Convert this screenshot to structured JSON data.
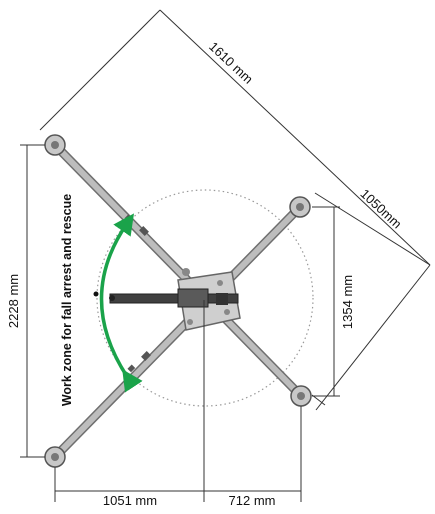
{
  "dimensions": {
    "diagonal_long": "1610 mm",
    "diagonal_short": "1050mm",
    "height_total": "2228 mm",
    "height_right": "1354 mm",
    "width_left": "1051 mm",
    "width_right": "712 mm"
  },
  "work_zone_label": "Work zone for fall arrest and rescue",
  "colors": {
    "arm": "#a9a9a9",
    "arm_edge": "#6f6f6f",
    "boom": "#404040",
    "arrow": "#1aa34a",
    "dim_line": "#333333",
    "circle_dots": "#999999"
  }
}
